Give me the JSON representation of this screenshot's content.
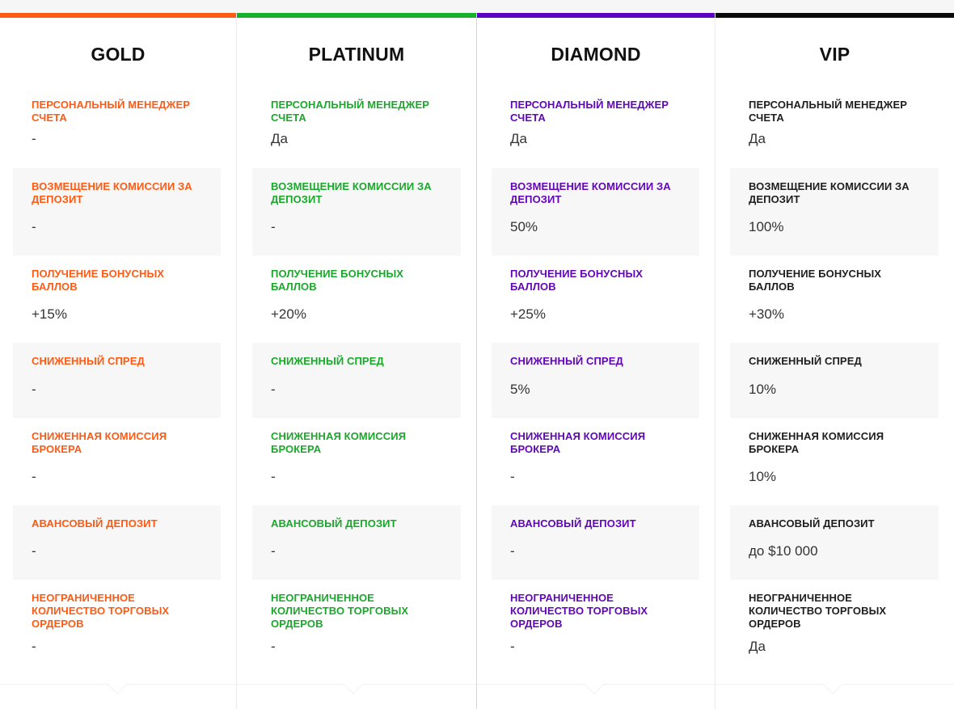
{
  "columns": [
    {
      "title": "GOLD",
      "accent": "#ff5a13",
      "label_color": "#ff5a13",
      "rows": [
        {
          "label": "Персональный менеджер счета",
          "value": "-"
        },
        {
          "label": "Возмещение комиссии за депозит",
          "value": "-"
        },
        {
          "label": "Получение бонусных баллов",
          "value": "+15%"
        },
        {
          "label": "Сниженный спред",
          "value": "-"
        },
        {
          "label": "Сниженная комиссия брокера",
          "value": "-"
        },
        {
          "label": "Авансовый депозит",
          "value": "-"
        },
        {
          "label": "Неограниченное количество торговых ордеров",
          "value": "-"
        }
      ]
    },
    {
      "title": "PLATINUM",
      "accent": "#16b02a",
      "label_color": "#1aa82b",
      "rows": [
        {
          "label": "Персональный менеджер счета",
          "value": "Да"
        },
        {
          "label": "Возмещение комиссии за депозит",
          "value": "-"
        },
        {
          "label": "Получение бонусных баллов",
          "value": "+20%"
        },
        {
          "label": "Сниженный спред",
          "value": "-"
        },
        {
          "label": "Сниженная комиссия брокера",
          "value": "-"
        },
        {
          "label": "Авансовый депозит",
          "value": "-"
        },
        {
          "label": "Неограниченное количество торговых ордеров",
          "value": "-"
        }
      ]
    },
    {
      "title": "DIAMOND",
      "accent": "#5c00c2",
      "label_color": "#6207b8",
      "rows": [
        {
          "label": "Персональный менеджер счета",
          "value": "Да"
        },
        {
          "label": "Возмещение комиссии за депозит",
          "value": "50%"
        },
        {
          "label": "Получение бонусных баллов",
          "value": "+25%"
        },
        {
          "label": "Сниженный спред",
          "value": "5%"
        },
        {
          "label": "Сниженная комиссия брокера",
          "value": "-"
        },
        {
          "label": "Авансовый депозит",
          "value": "-"
        },
        {
          "label": "Неограниченное количество торговых ордеров",
          "value": "-"
        }
      ]
    },
    {
      "title": "VIP",
      "accent": "#0a0a0a",
      "label_color": "#1e1e1e",
      "rows": [
        {
          "label": "Персональный менеджер счета",
          "value": "Да"
        },
        {
          "label": "Возмещение комиссии за депозит",
          "value": "100%"
        },
        {
          "label": "Получение бонусных баллов",
          "value": "+30%"
        },
        {
          "label": "Сниженный спред",
          "value": "10%"
        },
        {
          "label": "Сниженная комиссия брокера",
          "value": "10%"
        },
        {
          "label": "Авансовый депозит",
          "value": "до $10 000"
        },
        {
          "label": "Неограниченное количество торговых ордеров",
          "value": "Да"
        }
      ]
    }
  ]
}
